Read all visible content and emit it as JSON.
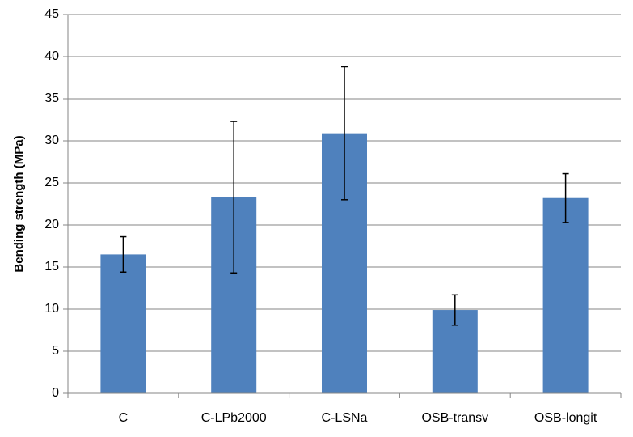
{
  "chart_data": {
    "type": "bar",
    "ylabel": "Bending strength (MPa)",
    "ylim": [
      0,
      45
    ],
    "ytick_step": 5,
    "grid": true,
    "categories": [
      "C",
      "C-LPb2000",
      "C-LSNa",
      "OSB-transv",
      "OSB-longit"
    ],
    "values": [
      16.5,
      23.3,
      30.9,
      9.9,
      23.2
    ],
    "error_low": [
      14.4,
      14.3,
      23.0,
      8.1,
      20.3
    ],
    "error_high": [
      18.6,
      32.3,
      38.8,
      11.7,
      26.1
    ],
    "bar_color": "#4f81bd",
    "grid_color": "#868686",
    "axis_color": "#868686",
    "error_color": "#000000"
  }
}
